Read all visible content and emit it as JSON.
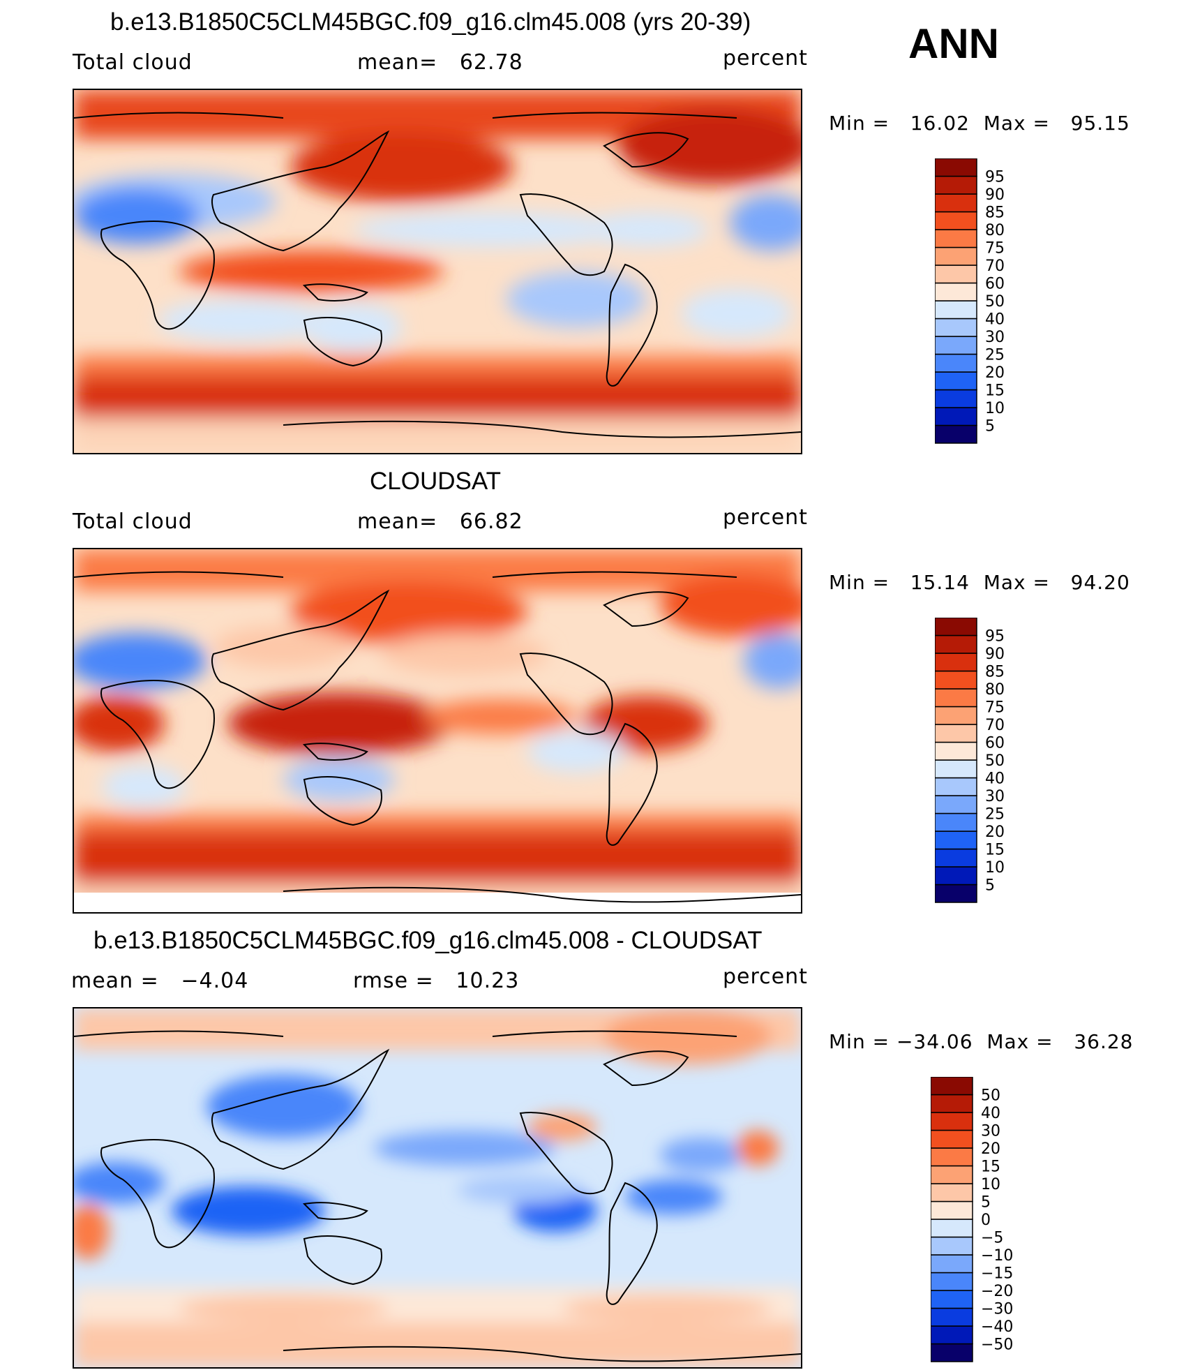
{
  "season": "ANN",
  "panels": [
    {
      "id": "model",
      "title": "b.e13.B1850C5CLM45BGC.f09_g16.clm45.008 (yrs 20-39)",
      "left_label": "Total cloud",
      "mid_label": "mean=   62.78",
      "units": "percent",
      "stats": "Min =   16.02  Max =   95.15",
      "colorbar": {
        "colors": [
          "#08006a",
          "#0019b8",
          "#0a3ce0",
          "#1f63f5",
          "#4a86fa",
          "#7aa8fb",
          "#a8c8fc",
          "#d6e8fc",
          "#fde8d8",
          "#fdc7a8",
          "#fca274",
          "#fb7a45",
          "#f2501f",
          "#d9300e",
          "#b51b06",
          "#8a0a02"
        ],
        "labels": [
          "95",
          "90",
          "85",
          "80",
          "75",
          "70",
          "60",
          "50",
          "40",
          "30",
          "25",
          "20",
          "15",
          "10",
          "5"
        ]
      }
    },
    {
      "id": "obs",
      "title": "CLOUDSAT",
      "left_label": "Total cloud",
      "mid_label": "mean=   66.82",
      "units": "percent",
      "stats": "Min =   15.14  Max =   94.20",
      "colorbar": {
        "colors": [
          "#08006a",
          "#0019b8",
          "#0a3ce0",
          "#1f63f5",
          "#4a86fa",
          "#7aa8fb",
          "#a8c8fc",
          "#d6e8fc",
          "#fde8d8",
          "#fdc7a8",
          "#fca274",
          "#fb7a45",
          "#f2501f",
          "#d9300e",
          "#b51b06",
          "#8a0a02"
        ],
        "labels": [
          "95",
          "90",
          "85",
          "80",
          "75",
          "70",
          "60",
          "50",
          "40",
          "30",
          "25",
          "20",
          "15",
          "10",
          "5"
        ]
      }
    },
    {
      "id": "diff",
      "title": "b.e13.B1850C5CLM45BGC.f09_g16.clm45.008 - CLOUDSAT",
      "left_label": "mean =   −4.04",
      "mid_label": "rmse =   10.23",
      "units": "percent",
      "stats": "Min = −34.06  Max =   36.28",
      "colorbar": {
        "colors": [
          "#08006a",
          "#0019b8",
          "#0a3ce0",
          "#1f63f5",
          "#4a86fa",
          "#7aa8fb",
          "#a8c8fc",
          "#d6e8fc",
          "#fde8d8",
          "#fdc7a8",
          "#fca274",
          "#fb7a45",
          "#f2501f",
          "#d9300e",
          "#b51b06",
          "#8a0a02"
        ],
        "labels": [
          "50",
          "40",
          "30",
          "20",
          "15",
          "10",
          "5",
          "0",
          "−5",
          "−10",
          "−15",
          "−20",
          "−30",
          "−40",
          "−50"
        ]
      }
    }
  ]
}
